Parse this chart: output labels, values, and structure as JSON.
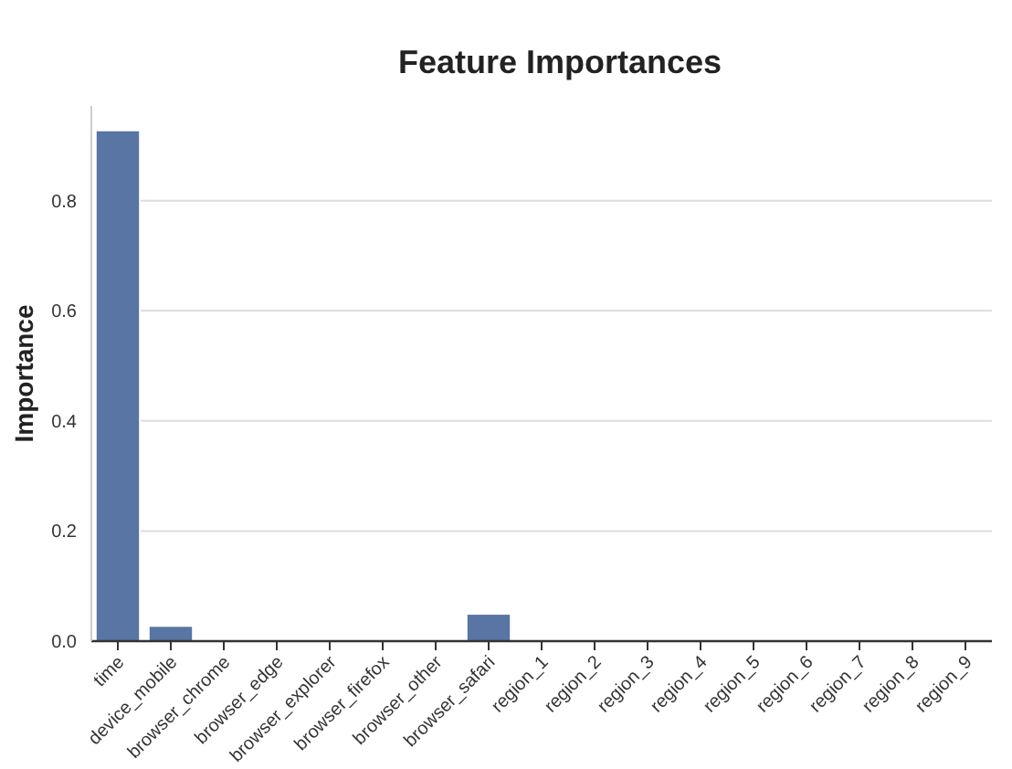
{
  "chart_data": {
    "type": "bar",
    "title": "Feature Importances",
    "ylabel": "Importance",
    "categories": [
      "time",
      "device_mobile",
      "browser_chrome",
      "browser_edge",
      "browser_explorer",
      "browser_firefox",
      "browser_other",
      "browser_safari",
      "region_1",
      "region_2",
      "region_3",
      "region_4",
      "region_5",
      "region_6",
      "region_7",
      "region_8",
      "region_9"
    ],
    "values": [
      0.926,
      0.026,
      0,
      0,
      0,
      0,
      0,
      0.048,
      0,
      0,
      0,
      0,
      0,
      0,
      0,
      0,
      0
    ],
    "color": "#5975a4",
    "ylim": [
      0,
      0.972
    ],
    "yticks": [
      {
        "value": 0,
        "label": "0.0"
      },
      {
        "value": 0.2,
        "label": "0.2"
      },
      {
        "value": 0.4,
        "label": "0.4"
      },
      {
        "value": 0.6,
        "label": "0.6"
      },
      {
        "value": 0.8,
        "label": "0.8"
      }
    ],
    "grid": "y"
  }
}
